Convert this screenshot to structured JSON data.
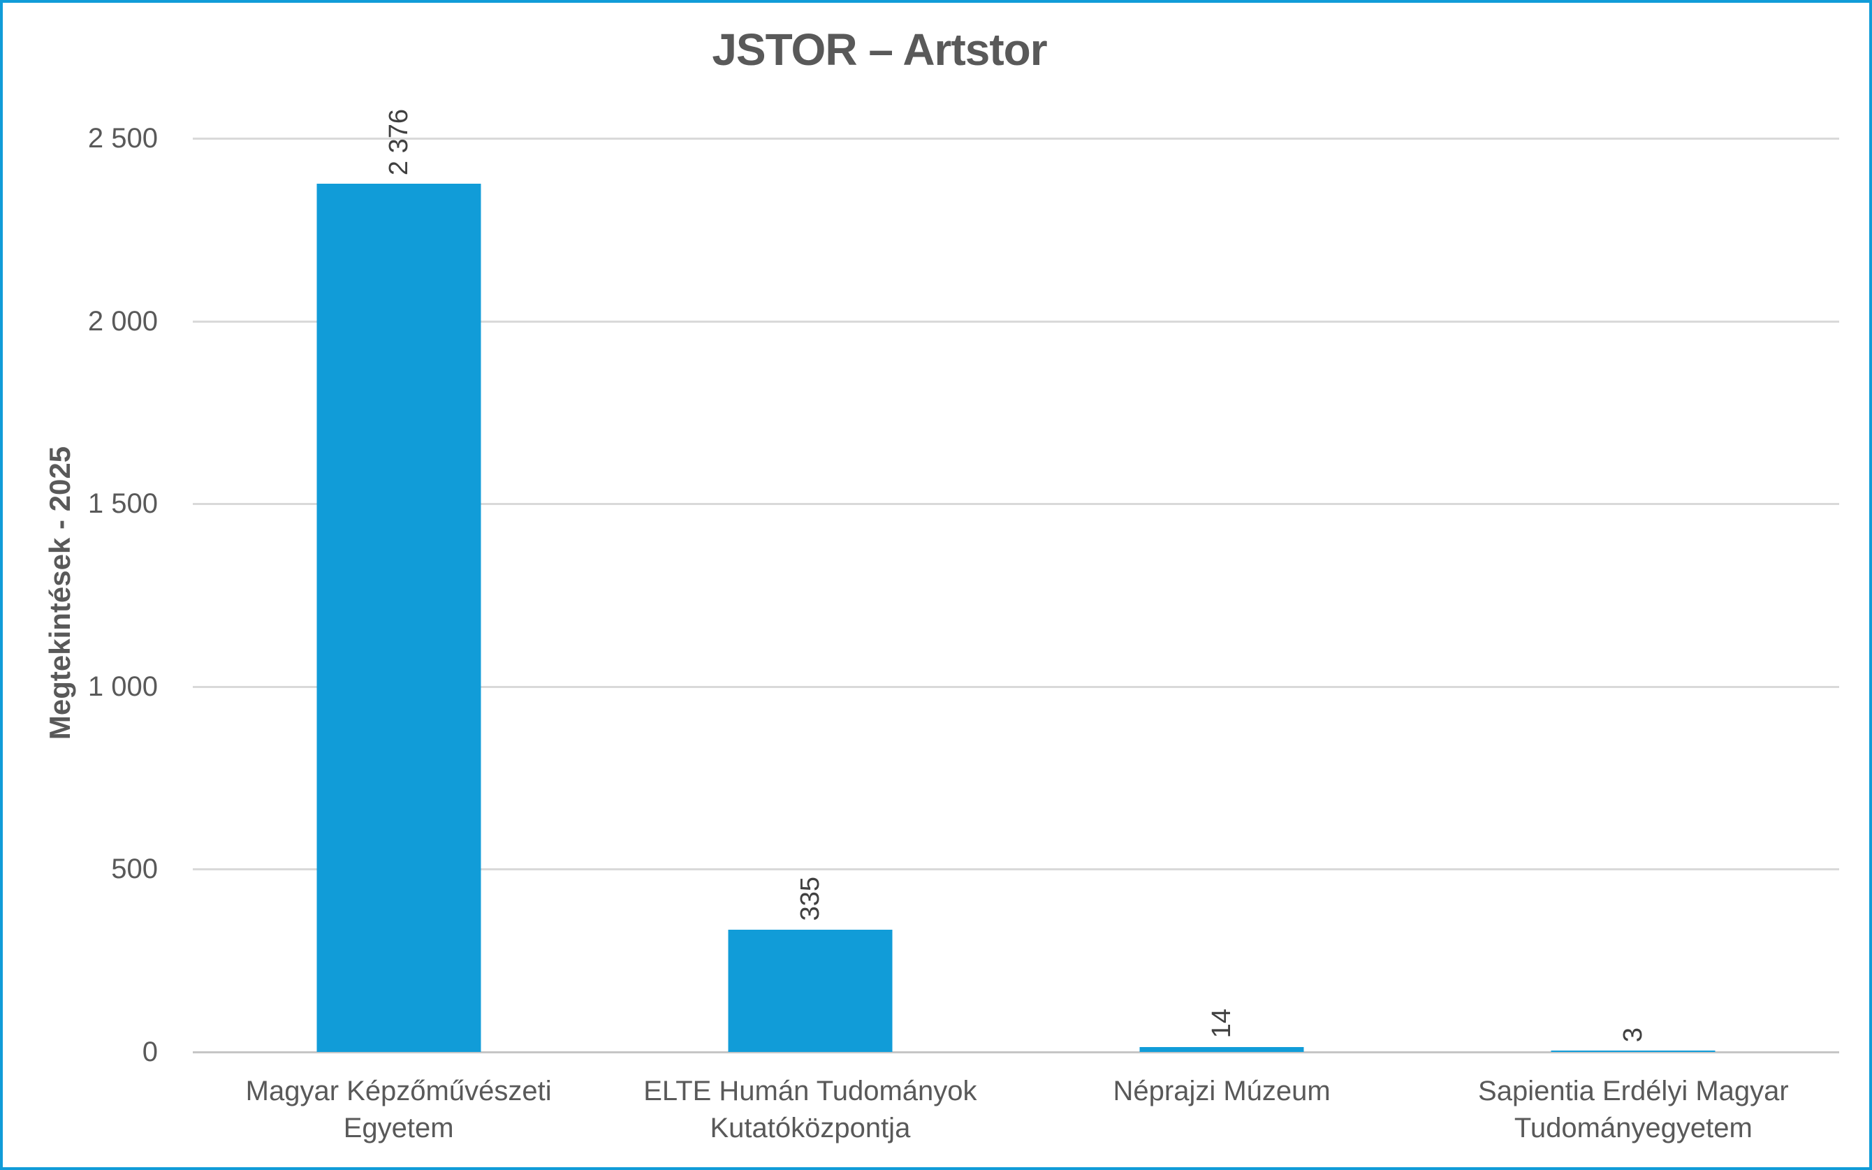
{
  "colors": {
    "frame_border": "#119CD8",
    "bar": "#119CD8",
    "grid": "#D9D9D9",
    "axis_line": "#C6C6C6",
    "title_text": "#595959",
    "label_text": "#595959",
    "value_text": "#404040"
  },
  "chart_data": {
    "type": "bar",
    "title": "JSTOR – Artstor",
    "ylabel": "Megtekintések - 2025",
    "xlabel": "",
    "categories": [
      "Magyar Képzőművészeti Egyetem",
      "ELTE Humán Tudományok Kutatóközpontja",
      "Néprajzi Múzeum",
      "Sapientia Erdélyi Magyar Tudományegyetem"
    ],
    "values": [
      2376,
      335,
      14,
      3
    ],
    "value_labels": [
      "2 376",
      "335",
      "14",
      "3"
    ],
    "ylim": [
      0,
      2500
    ],
    "ytick_values": [
      0,
      500,
      1000,
      1500,
      2000,
      2500
    ],
    "ytick_labels": [
      "0",
      "500",
      "1 000",
      "1 500",
      "2 000",
      "2 500"
    ],
    "grid": true,
    "legend": "none"
  }
}
